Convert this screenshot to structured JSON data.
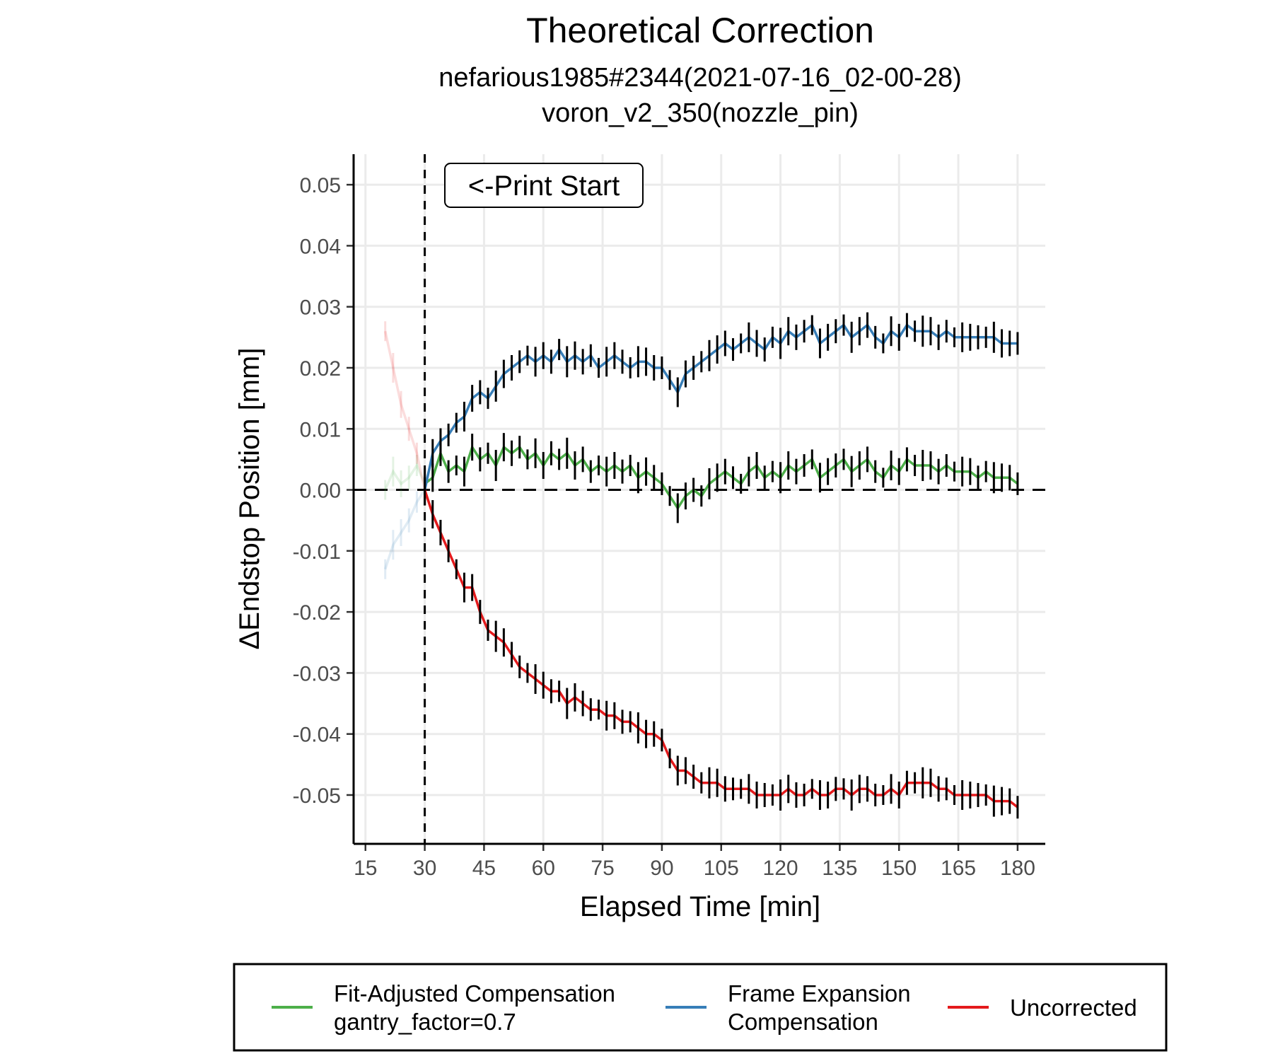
{
  "chart_data": {
    "type": "line",
    "title": "Theoretical Correction",
    "subtitle_line1": "nefarious1985#2344(2021-07-16_02-00-28)",
    "subtitle_line2": "voron_v2_350(nozzle_pin)",
    "xlabel": "Elapsed Time [min]",
    "ylabel": "ΔEndstop Position [mm]",
    "xlim": [
      12,
      187
    ],
    "ylim": [
      -0.058,
      0.055
    ],
    "x_ticks": [
      "15",
      "30",
      "45",
      "60",
      "75",
      "90",
      "105",
      "120",
      "135",
      "150",
      "165",
      "180"
    ],
    "y_ticks": [
      "0.05",
      "0.04",
      "0.03",
      "0.02",
      "0.01",
      "0.00",
      "-0.01",
      "-0.02",
      "-0.03",
      "-0.04",
      "-0.05"
    ],
    "grid": true,
    "annotation": "<-Print Start",
    "print_start_x": 30,
    "zero_line_y": 0,
    "legend_position": "bottom",
    "pre_start_alpha": 0.15,
    "series": [
      {
        "name": "Fit-Adjusted Compensation gantry_factor=0.7",
        "legend_line1": "Fit-Adjusted Compensation",
        "legend_line2": "gantry_factor=0.7",
        "color": "#4daf4a",
        "x": [
          20,
          22,
          24,
          26,
          28,
          30,
          32,
          34,
          36,
          38,
          40,
          42,
          44,
          46,
          48,
          50,
          52,
          54,
          56,
          58,
          60,
          62,
          64,
          66,
          68,
          70,
          72,
          74,
          76,
          78,
          80,
          82,
          84,
          86,
          88,
          90,
          92,
          94,
          96,
          98,
          100,
          102,
          104,
          106,
          108,
          110,
          112,
          114,
          116,
          118,
          120,
          122,
          124,
          126,
          128,
          130,
          132,
          134,
          136,
          138,
          140,
          142,
          144,
          146,
          148,
          150,
          152,
          154,
          156,
          158,
          160,
          162,
          164,
          166,
          168,
          170,
          172,
          174,
          176,
          178,
          180
        ],
        "y": [
          0.0,
          0.003,
          0.001,
          0.002,
          0.004,
          0.001,
          0.002,
          0.006,
          0.003,
          0.004,
          0.003,
          0.007,
          0.005,
          0.006,
          0.004,
          0.007,
          0.006,
          0.007,
          0.005,
          0.006,
          0.004,
          0.006,
          0.005,
          0.006,
          0.004,
          0.005,
          0.003,
          0.004,
          0.003,
          0.004,
          0.003,
          0.004,
          0.002,
          0.003,
          0.002,
          0.001,
          -0.001,
          -0.003,
          -0.001,
          0.0,
          -0.001,
          0.001,
          0.002,
          0.003,
          0.002,
          0.001,
          0.003,
          0.004,
          0.002,
          0.003,
          0.002,
          0.004,
          0.003,
          0.004,
          0.005,
          0.002,
          0.003,
          0.004,
          0.005,
          0.003,
          0.004,
          0.005,
          0.003,
          0.002,
          0.004,
          0.003,
          0.005,
          0.004,
          0.004,
          0.004,
          0.003,
          0.004,
          0.003,
          0.003,
          0.003,
          0.002,
          0.003,
          0.002,
          0.002,
          0.002,
          0.001
        ]
      },
      {
        "name": "Frame Expansion Compensation",
        "legend_line1": "Frame Expansion",
        "legend_line2": "Compensation",
        "color": "#377eb8",
        "x": [
          20,
          22,
          24,
          26,
          28,
          30,
          32,
          34,
          36,
          38,
          40,
          42,
          44,
          46,
          48,
          50,
          52,
          54,
          56,
          58,
          60,
          62,
          64,
          66,
          68,
          70,
          72,
          74,
          76,
          78,
          80,
          82,
          84,
          86,
          88,
          90,
          92,
          94,
          96,
          98,
          100,
          102,
          104,
          106,
          108,
          110,
          112,
          114,
          116,
          118,
          120,
          122,
          124,
          126,
          128,
          130,
          132,
          134,
          136,
          138,
          140,
          142,
          144,
          146,
          148,
          150,
          152,
          154,
          156,
          158,
          160,
          162,
          164,
          166,
          168,
          170,
          172,
          174,
          176,
          178,
          180
        ],
        "y": [
          -0.013,
          -0.009,
          -0.007,
          -0.005,
          -0.002,
          0.0,
          0.006,
          0.008,
          0.009,
          0.011,
          0.012,
          0.015,
          0.016,
          0.015,
          0.017,
          0.019,
          0.02,
          0.021,
          0.022,
          0.021,
          0.022,
          0.021,
          0.023,
          0.021,
          0.022,
          0.021,
          0.022,
          0.02,
          0.021,
          0.022,
          0.021,
          0.02,
          0.021,
          0.021,
          0.02,
          0.02,
          0.018,
          0.016,
          0.019,
          0.02,
          0.021,
          0.022,
          0.023,
          0.024,
          0.023,
          0.024,
          0.025,
          0.024,
          0.023,
          0.025,
          0.024,
          0.026,
          0.025,
          0.026,
          0.027,
          0.024,
          0.025,
          0.026,
          0.027,
          0.025,
          0.026,
          0.027,
          0.025,
          0.024,
          0.026,
          0.025,
          0.027,
          0.026,
          0.026,
          0.026,
          0.025,
          0.026,
          0.025,
          0.025,
          0.025,
          0.025,
          0.025,
          0.025,
          0.024,
          0.024,
          0.024
        ]
      },
      {
        "name": "Uncorrected",
        "legend_line1": "Uncorrected",
        "legend_line2": "",
        "color": "#e41a1c",
        "x": [
          20,
          22,
          24,
          26,
          28,
          30,
          32,
          34,
          36,
          38,
          40,
          42,
          44,
          46,
          48,
          50,
          52,
          54,
          56,
          58,
          60,
          62,
          64,
          66,
          68,
          70,
          72,
          74,
          76,
          78,
          80,
          82,
          84,
          86,
          88,
          90,
          92,
          94,
          96,
          98,
          100,
          102,
          104,
          106,
          108,
          110,
          112,
          114,
          116,
          118,
          120,
          122,
          124,
          126,
          128,
          130,
          132,
          134,
          136,
          138,
          140,
          142,
          144,
          146,
          148,
          150,
          152,
          154,
          156,
          158,
          160,
          162,
          164,
          166,
          168,
          170,
          172,
          174,
          176,
          178,
          180
        ],
        "y": [
          0.026,
          0.02,
          0.014,
          0.01,
          0.006,
          0.0,
          -0.004,
          -0.007,
          -0.01,
          -0.013,
          -0.016,
          -0.016,
          -0.02,
          -0.023,
          -0.024,
          -0.025,
          -0.027,
          -0.029,
          -0.03,
          -0.031,
          -0.032,
          -0.033,
          -0.033,
          -0.035,
          -0.034,
          -0.035,
          -0.036,
          -0.036,
          -0.037,
          -0.037,
          -0.038,
          -0.038,
          -0.039,
          -0.04,
          -0.04,
          -0.041,
          -0.044,
          -0.046,
          -0.046,
          -0.047,
          -0.048,
          -0.048,
          -0.048,
          -0.049,
          -0.049,
          -0.049,
          -0.049,
          -0.05,
          -0.05,
          -0.05,
          -0.05,
          -0.049,
          -0.05,
          -0.05,
          -0.049,
          -0.05,
          -0.05,
          -0.049,
          -0.049,
          -0.05,
          -0.049,
          -0.049,
          -0.05,
          -0.05,
          -0.049,
          -0.05,
          -0.048,
          -0.048,
          -0.048,
          -0.048,
          -0.049,
          -0.049,
          -0.05,
          -0.05,
          -0.05,
          -0.05,
          -0.05,
          -0.051,
          -0.051,
          -0.051,
          -0.052
        ]
      }
    ]
  }
}
